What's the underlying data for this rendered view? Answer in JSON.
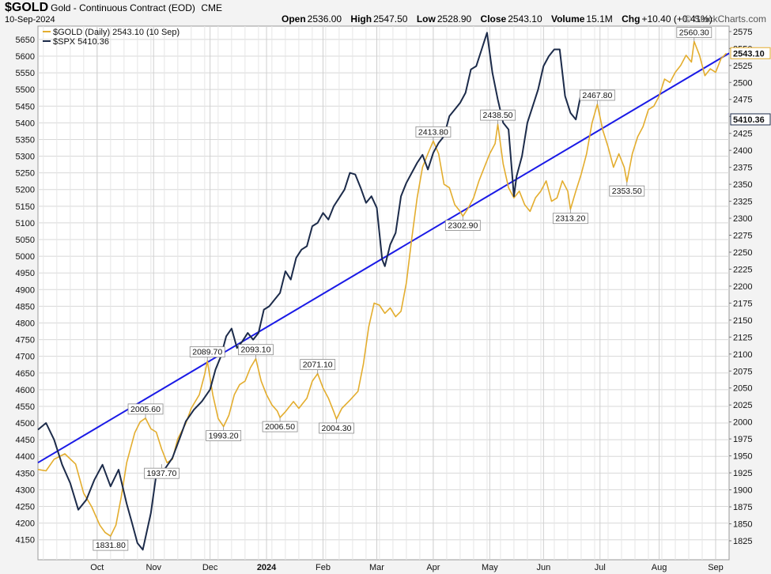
{
  "header": {
    "symbol": "$GOLD",
    "description": "Gold - Continuous Contract (EOD)",
    "exchange": "CME",
    "date": "10-Sep-2024",
    "open_label": "Open",
    "open": "2536.00",
    "high_label": "High",
    "high": "2547.50",
    "low_label": "Low",
    "low": "2528.90",
    "close_label": "Close",
    "close": "2543.10",
    "volume_label": "Volume",
    "volume": "15.1M",
    "chg_label": "Chg",
    "chg": "+10.40 (+0.41%)",
    "brand": "© StockCharts.com"
  },
  "colors": {
    "gold": "#e3ad2e",
    "spx": "#1c2b4a",
    "trend": "#1a1ae6",
    "grid": "#d8d8d8",
    "plot_bg": "#ffffff"
  },
  "chart_data": {
    "type": "line",
    "legend": [
      {
        "label": "$GOLD (Daily) 2543.10 (10 Sep)",
        "color": "#e3ad2e"
      },
      {
        "label": "$SPX 5410.36",
        "color": "#1c2b4a"
      }
    ],
    "legend_position": "top-left",
    "grid": true,
    "x_month_labels": [
      "Oct",
      "Nov",
      "Dec",
      "2024",
      "Feb",
      "Mar",
      "Apr",
      "May",
      "Jun",
      "Jul",
      "Aug",
      "Sep"
    ],
    "x_month_positions": [
      22,
      43,
      64,
      85,
      106,
      126,
      147,
      168,
      188,
      209,
      231,
      252
    ],
    "x_range": [
      0,
      257
    ],
    "left_axis": {
      "label": "SPX",
      "ticks": [
        4150,
        4200,
        4250,
        4300,
        4350,
        4400,
        4450,
        4500,
        4550,
        4600,
        4650,
        4700,
        4750,
        4800,
        4850,
        4900,
        4950,
        5000,
        5050,
        5100,
        5150,
        5200,
        5250,
        5300,
        5350,
        5400,
        5450,
        5500,
        5550,
        5600,
        5650
      ],
      "range": [
        4090,
        5690
      ]
    },
    "right_axis": {
      "label": "GOLD",
      "ticks": [
        1825,
        1850,
        1875,
        1900,
        1925,
        1950,
        1975,
        2000,
        2025,
        2050,
        2075,
        2100,
        2125,
        2150,
        2175,
        2200,
        2225,
        2250,
        2275,
        2300,
        2325,
        2350,
        2375,
        2400,
        2425,
        2450,
        2475,
        2500,
        2525,
        2550,
        2575
      ],
      "range": [
        1797,
        2583
      ]
    },
    "gold_last_value": "2543.10",
    "spx_last_value": "5410.36",
    "series": [
      {
        "name": "$GOLD",
        "axis": "right",
        "points": [
          [
            0,
            1930
          ],
          [
            3,
            1928
          ],
          [
            6,
            1945
          ],
          [
            10,
            1953
          ],
          [
            14,
            1938
          ],
          [
            17,
            1895
          ],
          [
            20,
            1875
          ],
          [
            23,
            1848
          ],
          [
            25,
            1837
          ],
          [
            27,
            1831.8
          ],
          [
            29,
            1848
          ],
          [
            31,
            1890
          ],
          [
            33,
            1940
          ],
          [
            36,
            1984
          ],
          [
            38,
            2000
          ],
          [
            40,
            2005.6
          ],
          [
            42,
            1990
          ],
          [
            44,
            1985
          ],
          [
            46,
            1960
          ],
          [
            48,
            1940
          ],
          [
            50,
            1945
          ],
          [
            52,
            1975
          ],
          [
            55,
            1998
          ],
          [
            57,
            2020
          ],
          [
            60,
            2040
          ],
          [
            62,
            2070
          ],
          [
            63,
            2089.7
          ],
          [
            65,
            2040
          ],
          [
            67,
            2005
          ],
          [
            69,
            1993.2
          ],
          [
            71,
            2010
          ],
          [
            73,
            2040
          ],
          [
            75,
            2055
          ],
          [
            77,
            2060
          ],
          [
            79,
            2080
          ],
          [
            81,
            2093.1
          ],
          [
            83,
            2060
          ],
          [
            85,
            2040
          ],
          [
            87,
            2025
          ],
          [
            89,
            2016
          ],
          [
            90,
            2006.5
          ],
          [
            92,
            2015
          ],
          [
            95,
            2030
          ],
          [
            97,
            2020
          ],
          [
            100,
            2035
          ],
          [
            102,
            2060
          ],
          [
            104,
            2071.1
          ],
          [
            106,
            2050
          ],
          [
            108,
            2035
          ],
          [
            110,
            2015
          ],
          [
            111,
            2004.3
          ],
          [
            113,
            2020
          ],
          [
            116,
            2032
          ],
          [
            119,
            2045
          ],
          [
            121,
            2085
          ],
          [
            123,
            2140
          ],
          [
            125,
            2175
          ],
          [
            127,
            2172
          ],
          [
            129,
            2160
          ],
          [
            131,
            2168
          ],
          [
            133,
            2155
          ],
          [
            135,
            2163
          ],
          [
            137,
            2205
          ],
          [
            139,
            2270
          ],
          [
            141,
            2330
          ],
          [
            143,
            2375
          ],
          [
            145,
            2395
          ],
          [
            147,
            2413.8
          ],
          [
            149,
            2395
          ],
          [
            151,
            2350
          ],
          [
            153,
            2345
          ],
          [
            155,
            2320
          ],
          [
            157,
            2310
          ],
          [
            158,
            2302.9
          ],
          [
            160,
            2315
          ],
          [
            162,
            2330
          ],
          [
            164,
            2355
          ],
          [
            166,
            2375
          ],
          [
            168,
            2395
          ],
          [
            170,
            2410
          ],
          [
            171,
            2438.5
          ],
          [
            173,
            2380
          ],
          [
            175,
            2345
          ],
          [
            177,
            2330
          ],
          [
            179,
            2340
          ],
          [
            181,
            2320
          ],
          [
            183,
            2310
          ],
          [
            185,
            2330
          ],
          [
            187,
            2340
          ],
          [
            189,
            2355
          ],
          [
            191,
            2325
          ],
          [
            193,
            2330
          ],
          [
            195,
            2355
          ],
          [
            197,
            2340
          ],
          [
            198,
            2313.2
          ],
          [
            200,
            2340
          ],
          [
            202,
            2365
          ],
          [
            204,
            2395
          ],
          [
            206,
            2440
          ],
          [
            208,
            2467.8
          ],
          [
            210,
            2430
          ],
          [
            212,
            2405
          ],
          [
            214,
            2375
          ],
          [
            216,
            2395
          ],
          [
            218,
            2375
          ],
          [
            219,
            2353.5
          ],
          [
            221,
            2395
          ],
          [
            223,
            2420
          ],
          [
            225,
            2435
          ],
          [
            227,
            2460
          ],
          [
            229,
            2465
          ],
          [
            231,
            2480
          ],
          [
            233,
            2505
          ],
          [
            235,
            2500
          ],
          [
            237,
            2515
          ],
          [
            239,
            2525
          ],
          [
            241,
            2540
          ],
          [
            243,
            2530
          ],
          [
            244,
            2560.3
          ],
          [
            246,
            2540
          ],
          [
            248,
            2510
          ],
          [
            250,
            2520
          ],
          [
            252,
            2515
          ],
          [
            254,
            2535
          ],
          [
            256,
            2543.1
          ]
        ]
      },
      {
        "name": "$SPX",
        "axis": "left",
        "points": [
          [
            0,
            4480
          ],
          [
            3,
            4500
          ],
          [
            6,
            4450
          ],
          [
            9,
            4375
          ],
          [
            12,
            4320
          ],
          [
            15,
            4240
          ],
          [
            18,
            4270
          ],
          [
            21,
            4330
          ],
          [
            24,
            4375
          ],
          [
            27,
            4310
          ],
          [
            30,
            4360
          ],
          [
            33,
            4258
          ],
          [
            35,
            4200
          ],
          [
            37,
            4140
          ],
          [
            39,
            4120
          ],
          [
            42,
            4230
          ],
          [
            44,
            4345
          ],
          [
            47,
            4360
          ],
          [
            50,
            4395
          ],
          [
            53,
            4460
          ],
          [
            55,
            4505
          ],
          [
            58,
            4540
          ],
          [
            61,
            4565
          ],
          [
            64,
            4600
          ],
          [
            66,
            4660
          ],
          [
            68,
            4700
          ],
          [
            70,
            4760
          ],
          [
            72,
            4783
          ],
          [
            74,
            4725
          ],
          [
            76,
            4745
          ],
          [
            78,
            4770
          ],
          [
            80,
            4750
          ],
          [
            82,
            4770
          ],
          [
            84,
            4840
          ],
          [
            86,
            4850
          ],
          [
            88,
            4870
          ],
          [
            90,
            4890
          ],
          [
            92,
            4955
          ],
          [
            94,
            4930
          ],
          [
            96,
            4995
          ],
          [
            98,
            5020
          ],
          [
            100,
            5030
          ],
          [
            102,
            5090
          ],
          [
            104,
            5100
          ],
          [
            106,
            5130
          ],
          [
            108,
            5110
          ],
          [
            110,
            5150
          ],
          [
            112,
            5175
          ],
          [
            114,
            5200
          ],
          [
            116,
            5250
          ],
          [
            118,
            5245
          ],
          [
            120,
            5205
          ],
          [
            122,
            5160
          ],
          [
            124,
            5180
          ],
          [
            126,
            5145
          ],
          [
            128,
            4990
          ],
          [
            129,
            4970
          ],
          [
            131,
            5035
          ],
          [
            133,
            5070
          ],
          [
            135,
            5180
          ],
          [
            137,
            5220
          ],
          [
            139,
            5250
          ],
          [
            141,
            5280
          ],
          [
            143,
            5304
          ],
          [
            145,
            5260
          ],
          [
            147,
            5310
          ],
          [
            149,
            5340
          ],
          [
            151,
            5360
          ],
          [
            153,
            5420
          ],
          [
            155,
            5440
          ],
          [
            157,
            5460
          ],
          [
            159,
            5490
          ],
          [
            161,
            5560
          ],
          [
            163,
            5570
          ],
          [
            165,
            5620
          ],
          [
            167,
            5670
          ],
          [
            169,
            5550
          ],
          [
            171,
            5470
          ],
          [
            173,
            5400
          ],
          [
            175,
            5380
          ],
          [
            177,
            5180
          ],
          [
            178,
            5240
          ],
          [
            180,
            5300
          ],
          [
            182,
            5400
          ],
          [
            184,
            5450
          ],
          [
            186,
            5500
          ],
          [
            188,
            5570
          ],
          [
            190,
            5600
          ],
          [
            192,
            5620
          ],
          [
            194,
            5620
          ],
          [
            196,
            5480
          ],
          [
            198,
            5430
          ],
          [
            200,
            5410
          ],
          [
            202,
            5490
          ]
        ]
      }
    ],
    "trendline": {
      "axis": "right",
      "from": [
        0,
        1940
      ],
      "to": [
        257,
        2543
      ]
    },
    "annotations": [
      {
        "label": "2089.70",
        "x": 63,
        "y": 2089.7,
        "pos": "above"
      },
      {
        "label": "2093.10",
        "x": 81,
        "y": 2093.1,
        "pos": "above"
      },
      {
        "label": "2005.60",
        "x": 40,
        "y": 2005.6,
        "pos": "above"
      },
      {
        "label": "1993.20",
        "x": 69,
        "y": 1993.2,
        "pos": "below"
      },
      {
        "label": "1937.70",
        "x": 46,
        "y": 1937.7,
        "pos": "below"
      },
      {
        "label": "1831.80",
        "x": 27,
        "y": 1831.8,
        "pos": "below"
      },
      {
        "label": "2006.50",
        "x": 90,
        "y": 2006.5,
        "pos": "below"
      },
      {
        "label": "2071.10",
        "x": 104,
        "y": 2071.1,
        "pos": "above"
      },
      {
        "label": "2004.30",
        "x": 111,
        "y": 2004.3,
        "pos": "below"
      },
      {
        "label": "2413.80",
        "x": 147,
        "y": 2413.8,
        "pos": "above"
      },
      {
        "label": "2302.90",
        "x": 158,
        "y": 2302.9,
        "pos": "below"
      },
      {
        "label": "2438.50",
        "x": 171,
        "y": 2438.5,
        "pos": "above"
      },
      {
        "label": "2313.20",
        "x": 198,
        "y": 2313.2,
        "pos": "below"
      },
      {
        "label": "2467.80",
        "x": 208,
        "y": 2467.8,
        "pos": "above"
      },
      {
        "label": "2353.50",
        "x": 219,
        "y": 2353.5,
        "pos": "below"
      },
      {
        "label": "2560.30",
        "x": 244,
        "y": 2560.3,
        "pos": "above"
      }
    ]
  }
}
